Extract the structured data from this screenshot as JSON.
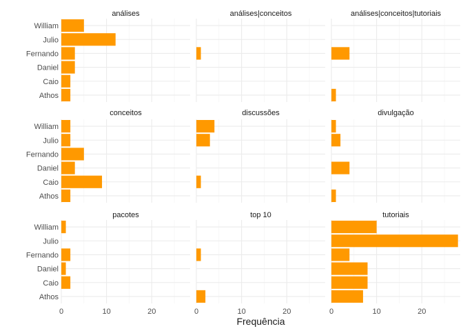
{
  "chart_data": {
    "type": "bar",
    "orientation": "horizontal",
    "xlabel": "Frequência",
    "ylabel": "",
    "xlim": [
      0,
      28.5
    ],
    "xticks": [
      0,
      10,
      20
    ],
    "grid": true,
    "bar_color": "#FF9900",
    "categories": [
      "William",
      "Julio",
      "Fernando",
      "Daniel",
      "Caio",
      "Athos"
    ],
    "panels": [
      {
        "title": "análises",
        "values": [
          5,
          12,
          3,
          3,
          2,
          2
        ]
      },
      {
        "title": "análises|conceitos",
        "values": [
          0,
          0,
          1,
          0,
          0,
          0
        ]
      },
      {
        "title": "análises|conceitos|tutoriais",
        "values": [
          0,
          0,
          4,
          0,
          0,
          1
        ]
      },
      {
        "title": "conceitos",
        "values": [
          2,
          2,
          5,
          3,
          9,
          2
        ]
      },
      {
        "title": "discussões",
        "values": [
          4,
          3,
          0,
          0,
          1,
          0
        ]
      },
      {
        "title": "divulgação",
        "values": [
          1,
          2,
          0,
          4,
          0,
          1
        ]
      },
      {
        "title": "pacotes",
        "values": [
          1,
          0,
          2,
          1,
          2,
          0
        ]
      },
      {
        "title": "top 10",
        "values": [
          0,
          0,
          1,
          0,
          0,
          2
        ]
      },
      {
        "title": "tutoriais",
        "values": [
          10,
          28,
          4,
          8,
          8,
          7
        ]
      }
    ]
  }
}
